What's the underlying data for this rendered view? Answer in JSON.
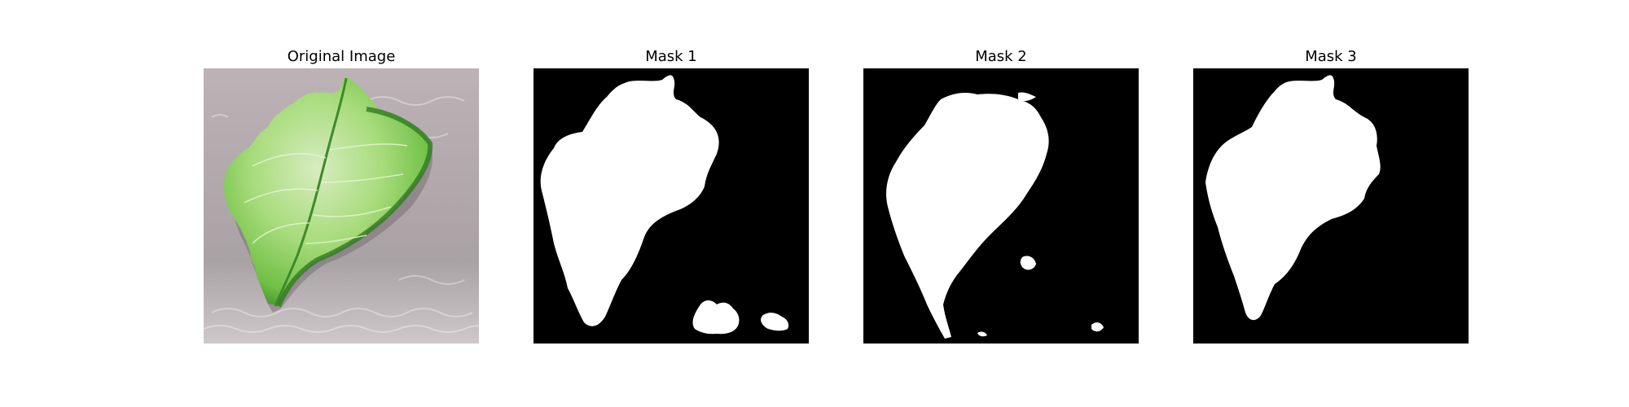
{
  "figure": {
    "background": "#ffffff",
    "panels": [
      {
        "title": "Original Image",
        "kind": "photo"
      },
      {
        "title": "Mask 1",
        "kind": "mask"
      },
      {
        "title": "Mask 2",
        "kind": "mask"
      },
      {
        "title": "Mask 3",
        "kind": "mask"
      }
    ]
  },
  "colors": {
    "mask_background": "#000000",
    "mask_foreground": "#ffffff",
    "leaf_light": "#c9e6a6",
    "leaf_mid": "#8fcf5f",
    "leaf_dark": "#2f7a1f",
    "surface": "#b9afb2"
  }
}
